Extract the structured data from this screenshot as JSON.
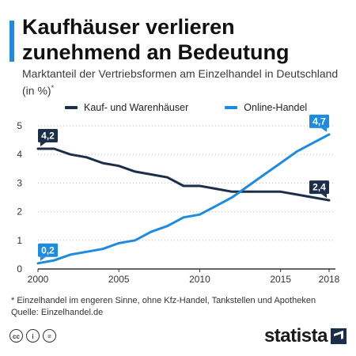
{
  "header": {
    "title": "Kaufhäuser verlieren zunehmend an Bedeutung",
    "subtitle": "Marktanteil der Vertriebsformen am Einzelhandel in Deutschland (in %)",
    "subtitle_marker": "*"
  },
  "chart_data": {
    "type": "line",
    "x": [
      2000,
      2001,
      2002,
      2003,
      2004,
      2005,
      2006,
      2007,
      2008,
      2009,
      2010,
      2011,
      2012,
      2013,
      2014,
      2015,
      2016,
      2017,
      2018
    ],
    "series": [
      {
        "name": "Kauf- und Warenhäuser",
        "color": "#1b2e4a",
        "values": [
          4.2,
          4.2,
          4.0,
          3.9,
          3.7,
          3.6,
          3.4,
          3.3,
          3.2,
          2.9,
          2.9,
          2.8,
          2.7,
          2.7,
          2.7,
          2.7,
          2.6,
          2.5,
          2.4
        ]
      },
      {
        "name": "Online-Handel",
        "color": "#1d8be0",
        "values": [
          0.2,
          0.3,
          0.5,
          0.6,
          0.7,
          0.9,
          1.0,
          1.3,
          1.5,
          1.8,
          1.9,
          2.2,
          2.5,
          2.9,
          3.3,
          3.7,
          4.1,
          4.4,
          4.7
        ]
      }
    ],
    "x_ticks": [
      "2000",
      "2005",
      "2010",
      "2015",
      "2018"
    ],
    "y_ticks": [
      "0",
      "1",
      "2",
      "3",
      "4",
      "5"
    ],
    "ylim": [
      0,
      5
    ],
    "xlim": [
      2000,
      2018
    ],
    "grid": "horizontal dotted",
    "legend": "top",
    "annotations": [
      {
        "label": "4,2",
        "series": 0,
        "x": 2000,
        "y": 4.2
      },
      {
        "label": "0,2",
        "series": 1,
        "x": 2000,
        "y": 0.2
      },
      {
        "label": "4,7",
        "series": 1,
        "x": 2018,
        "y": 4.7
      },
      {
        "label": "2,4",
        "series": 0,
        "x": 2018,
        "y": 2.4
      }
    ]
  },
  "footnote": {
    "line1": "* Einzelhandel im engeren Sinne, ohne Kfz-Handel, Tankstellen und Apotheken",
    "line2": "Quelle: Einzelhandel.de"
  },
  "license_icons": [
    "cc",
    "i",
    "="
  ],
  "brand": {
    "name": "statista"
  }
}
